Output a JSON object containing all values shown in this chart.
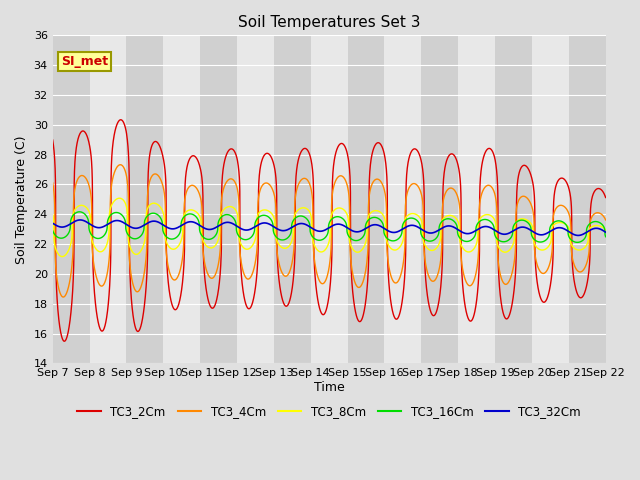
{
  "title": "Soil Temperatures Set 3",
  "xlabel": "Time",
  "ylabel": "Soil Temperature (C)",
  "ylim": [
    14,
    36
  ],
  "yticks": [
    14,
    16,
    18,
    20,
    22,
    24,
    26,
    28,
    30,
    32,
    34,
    36
  ],
  "xtick_labels": [
    "Sep 7",
    "Sep 8",
    "Sep 9",
    "Sep 10",
    "Sep 11",
    "Sep 12",
    "Sep 13",
    "Sep 14",
    "Sep 15",
    "Sep 16",
    "Sep 17",
    "Sep 18",
    "Sep 19",
    "Sep 20",
    "Sep 21",
    "Sep 22"
  ],
  "fig_bg": "#e0e0e0",
  "stripe_dark": "#d0d0d0",
  "stripe_light": "#e8e8e8",
  "series": {
    "TC3_2Cm": {
      "color": "#dd0000",
      "lw": 1.0
    },
    "TC3_4Cm": {
      "color": "#ff8800",
      "lw": 1.0
    },
    "TC3_8Cm": {
      "color": "#ffff00",
      "lw": 1.0
    },
    "TC3_16Cm": {
      "color": "#00dd00",
      "lw": 1.0
    },
    "TC3_32Cm": {
      "color": "#0000cc",
      "lw": 1.2
    }
  },
  "si_met_label": "SI_met",
  "si_met_color": "#cc0000",
  "si_met_bg": "#ffff99",
  "si_met_border": "#999900",
  "title_fontsize": 11,
  "axis_label_fontsize": 9,
  "tick_fontsize": 8
}
